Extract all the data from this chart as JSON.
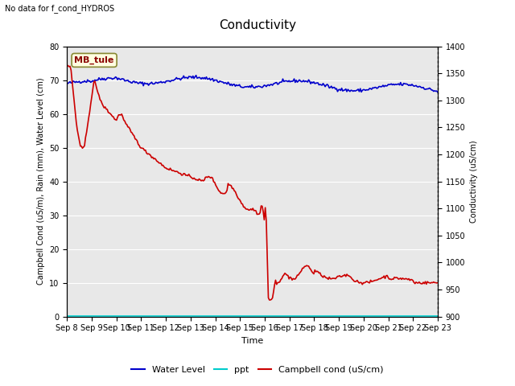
{
  "title": "Conductivity",
  "top_left_text": "No data for f_cond_HYDROS",
  "annotation_box": "MB_tule",
  "xlabel": "Time",
  "ylabel_left": "Campbell Cond (uS/m), Rain (mm), Water Level (cm)",
  "ylabel_right": "Conductivity (uS/cm)",
  "ylim_left": [
    0,
    80
  ],
  "ylim_right": [
    900,
    1400
  ],
  "plot_bg_color": "#e8e8e8",
  "x_ticks": [
    "Sep 8",
    "Sep 9",
    "Sep 10",
    "Sep 11",
    "Sep 12",
    "Sep 13",
    "Sep 14",
    "Sep 15",
    "Sep 16",
    "Sep 17",
    "Sep 18",
    "Sep 19",
    "Sep 20",
    "Sep 21",
    "Sep 22",
    "Sep 23"
  ],
  "water_level_color": "#0000cc",
  "ppt_color": "#00cccc",
  "campbell_color": "#cc0000",
  "legend_labels": [
    "Water Level",
    "ppt",
    "Campbell cond (uS/cm)"
  ],
  "title_fontsize": 11,
  "axis_label_fontsize": 7,
  "tick_fontsize": 7,
  "legend_fontsize": 8
}
